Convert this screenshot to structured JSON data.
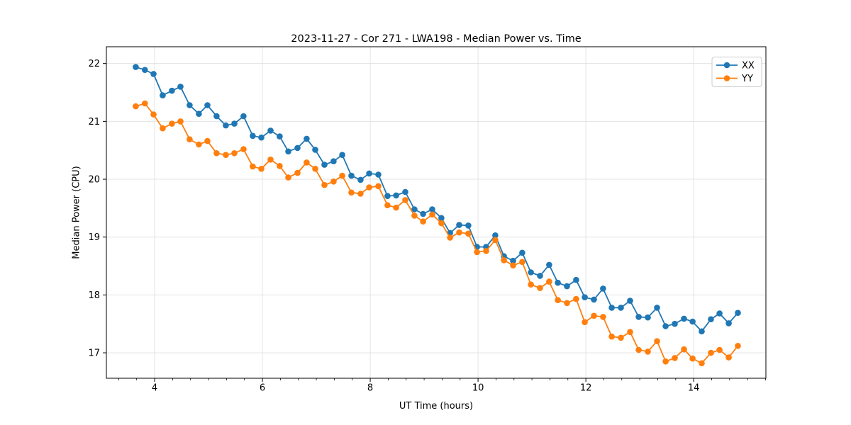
{
  "chart_data": {
    "type": "line",
    "title": "2023-11-27 - Cor 271 - LWA198 - Median Power vs. Time",
    "xlabel": "UT Time (hours)",
    "ylabel": "Median Power (CPU)",
    "xlim": [
      3.105,
      15.34
    ],
    "ylim": [
      16.56,
      22.29
    ],
    "xticks": [
      4,
      6,
      8,
      10,
      12,
      14
    ],
    "yticks": [
      17,
      18,
      19,
      20,
      21,
      22
    ],
    "x_minor_tick_step": 0.33333,
    "grid": true,
    "legend": {
      "position": "upper right",
      "entries": [
        "XX",
        "YY"
      ]
    },
    "x": [
      3.65,
      3.82,
      3.98,
      4.15,
      4.32,
      4.48,
      4.65,
      4.82,
      4.98,
      5.15,
      5.32,
      5.48,
      5.65,
      5.82,
      5.98,
      6.15,
      6.32,
      6.48,
      6.65,
      6.82,
      6.98,
      7.15,
      7.32,
      7.48,
      7.65,
      7.82,
      7.98,
      8.15,
      8.32,
      8.48,
      8.65,
      8.82,
      8.98,
      9.15,
      9.32,
      9.48,
      9.65,
      9.82,
      9.98,
      10.15,
      10.32,
      10.48,
      10.65,
      10.82,
      10.98,
      11.15,
      11.32,
      11.48,
      11.65,
      11.82,
      11.98,
      12.15,
      12.32,
      12.48,
      12.65,
      12.82,
      12.98,
      13.15,
      13.32,
      13.48,
      13.65,
      13.82,
      13.98,
      14.15,
      14.32,
      14.48,
      14.65,
      14.82
    ],
    "series": [
      {
        "name": "XX",
        "color": "#1f77b4",
        "marker": "circle",
        "values": [
          21.94,
          21.89,
          21.82,
          21.45,
          21.53,
          21.6,
          21.28,
          21.13,
          21.28,
          21.09,
          20.93,
          20.96,
          21.09,
          20.75,
          20.72,
          20.84,
          20.74,
          20.48,
          20.54,
          20.7,
          20.51,
          20.25,
          20.31,
          20.42,
          20.06,
          19.99,
          20.1,
          20.08,
          19.71,
          19.72,
          19.78,
          19.48,
          19.4,
          19.48,
          19.33,
          19.07,
          19.21,
          19.2,
          18.83,
          18.83,
          19.03,
          18.67,
          18.59,
          18.73,
          18.39,
          18.33,
          18.52,
          18.21,
          18.15,
          18.26,
          17.96,
          17.92,
          18.11,
          17.78,
          17.78,
          17.9,
          17.62,
          17.61,
          17.78,
          17.46,
          17.5,
          17.59,
          17.54,
          17.37,
          17.58,
          17.68,
          17.51,
          17.69
        ]
      },
      {
        "name": "YY",
        "color": "#ff7f0e",
        "marker": "circle",
        "values": [
          21.26,
          21.31,
          21.12,
          20.88,
          20.96,
          21.0,
          20.69,
          20.6,
          20.66,
          20.45,
          20.42,
          20.45,
          20.52,
          20.22,
          20.18,
          20.34,
          20.23,
          20.03,
          20.11,
          20.29,
          20.18,
          19.9,
          19.96,
          20.06,
          19.77,
          19.75,
          19.86,
          19.88,
          19.55,
          19.51,
          19.64,
          19.37,
          19.27,
          19.39,
          19.24,
          18.99,
          19.08,
          19.06,
          18.74,
          18.76,
          18.95,
          18.6,
          18.51,
          18.57,
          18.18,
          18.12,
          18.23,
          17.91,
          17.86,
          17.93,
          17.53,
          17.64,
          17.62,
          17.28,
          17.26,
          17.36,
          17.05,
          17.02,
          17.2,
          16.85,
          16.91,
          17.06,
          16.9,
          16.82,
          17.0,
          17.05,
          16.92,
          17.12
        ]
      }
    ],
    "style": {
      "grid_color": "#e3e3e3",
      "spine_color": "#000000",
      "text_color": "#000000",
      "background": "#ffffff"
    }
  }
}
